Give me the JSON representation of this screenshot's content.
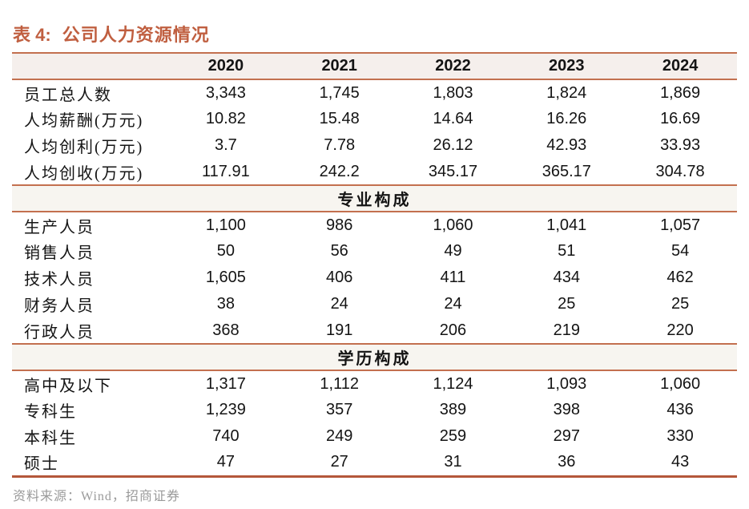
{
  "title": {
    "label": "表 4:",
    "text": "公司人力资源情况"
  },
  "table": {
    "columns": [
      "2020",
      "2021",
      "2022",
      "2023",
      "2024"
    ],
    "sections": [
      {
        "header": null,
        "rows": [
          {
            "label": "员工总人数",
            "values": [
              "3,343",
              "1,745",
              "1,803",
              "1,824",
              "1,869"
            ]
          },
          {
            "label": "人均薪酬(万元)",
            "values": [
              "10.82",
              "15.48",
              "14.64",
              "16.26",
              "16.69"
            ]
          },
          {
            "label": "人均创利(万元)",
            "values": [
              "3.7",
              "7.78",
              "26.12",
              "42.93",
              "33.93"
            ]
          },
          {
            "label": "人均创收(万元)",
            "values": [
              "117.91",
              "242.2",
              "345.17",
              "365.17",
              "304.78"
            ]
          }
        ]
      },
      {
        "header": "专业构成",
        "rows": [
          {
            "label": "生产人员",
            "values": [
              "1,100",
              "986",
              "1,060",
              "1,041",
              "1,057"
            ]
          },
          {
            "label": "销售人员",
            "values": [
              "50",
              "56",
              "49",
              "51",
              "54"
            ]
          },
          {
            "label": "技术人员",
            "values": [
              "1,605",
              "406",
              "411",
              "434",
              "462"
            ]
          },
          {
            "label": "财务人员",
            "values": [
              "38",
              "24",
              "24",
              "25",
              "25"
            ]
          },
          {
            "label": "行政人员",
            "values": [
              "368",
              "191",
              "206",
              "219",
              "220"
            ]
          }
        ]
      },
      {
        "header": "学历构成",
        "rows": [
          {
            "label": "高中及以下",
            "values": [
              "1,317",
              "1,112",
              "1,124",
              "1,093",
              "1,060"
            ]
          },
          {
            "label": "专科生",
            "values": [
              "1,239",
              "357",
              "389",
              "398",
              "436"
            ]
          },
          {
            "label": "本科生",
            "values": [
              "740",
              "249",
              "259",
              "297",
              "330"
            ]
          },
          {
            "label": "硕士",
            "values": [
              "47",
              "27",
              "31",
              "36",
              "43"
            ]
          }
        ]
      }
    ]
  },
  "footer": {
    "source": "资料来源：Wind，招商证券"
  },
  "colors": {
    "accent": "#c05f40",
    "rule": "#c3704f",
    "rule_heavy": "#b4573a",
    "header_bg": "#f5efec",
    "section_bg": "#f7f5f0",
    "body_text": "#141414",
    "source_text": "#9a9a9a"
  }
}
